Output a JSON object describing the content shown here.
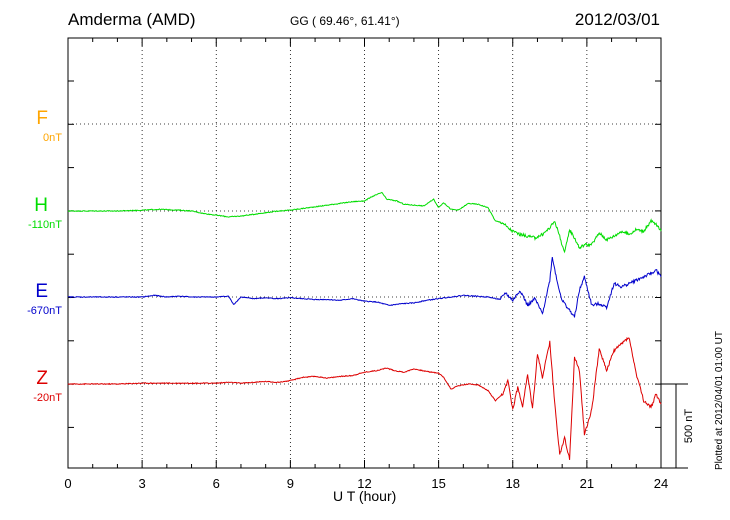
{
  "header": {
    "station": "Amderma (AMD)",
    "coords": "GG ( 69.46°,  61.41°)",
    "date": "2012/03/01"
  },
  "footer": {
    "plotted": "Plotted at 2012/04/01 01:00 UT"
  },
  "chart_data": {
    "type": "line",
    "title": "",
    "xlabel": "U T (hour)",
    "ylabel": "",
    "xlim": [
      0,
      24
    ],
    "xticks": [
      0,
      3,
      6,
      9,
      12,
      15,
      18,
      21,
      24
    ],
    "grid": true,
    "scale_bar": {
      "label": "500 nT",
      "value_nT": 500
    },
    "channels": [
      {
        "name": "F",
        "baseline": "0nT",
        "color": "#ffa500",
        "x": [],
        "y": []
      },
      {
        "name": "H",
        "baseline": "-110nT",
        "color": "#00dd00",
        "x": [
          0,
          1,
          2,
          3,
          3.7,
          4.5,
          5,
          5.5,
          6,
          6.5,
          7,
          7.5,
          8,
          8.5,
          9,
          9.5,
          10,
          10.5,
          11,
          11.5,
          12,
          12.3,
          12.7,
          12.9,
          13.3,
          13.6,
          14,
          14.4,
          14.8,
          15,
          15.2,
          15.5,
          15.8,
          16.2,
          16.6,
          17,
          17.3,
          17.6,
          17.8,
          18,
          18.3,
          18.6,
          18.9,
          19.2,
          19.5,
          19.7,
          19.9,
          20.1,
          20.3,
          20.5,
          20.7,
          20.9,
          21.2,
          21.5,
          21.8,
          22.1,
          22.4,
          22.7,
          23,
          23.3,
          23.6,
          23.8,
          24
        ],
        "y": [
          0,
          0,
          0,
          5,
          10,
          5,
          0,
          -15,
          -25,
          -35,
          -30,
          -20,
          -10,
          0,
          5,
          15,
          25,
          35,
          45,
          55,
          60,
          85,
          110,
          70,
          60,
          40,
          35,
          30,
          70,
          20,
          50,
          10,
          5,
          45,
          40,
          20,
          -60,
          -70,
          -100,
          -120,
          -140,
          -150,
          -160,
          -140,
          -100,
          -60,
          -150,
          -250,
          -110,
          -160,
          -220,
          -200,
          -200,
          -130,
          -170,
          -150,
          -120,
          -140,
          -110,
          -120,
          -60,
          -80,
          -120
        ]
      },
      {
        "name": "E",
        "baseline": "-670nT",
        "color": "#0000cc",
        "x": [
          0,
          1,
          2,
          3,
          3.5,
          4,
          4.5,
          5,
          5.5,
          6,
          6.5,
          6.7,
          7,
          7.5,
          8,
          8.5,
          9,
          9.5,
          10,
          10.5,
          11,
          11.5,
          12,
          12.5,
          13,
          13.5,
          14,
          14.5,
          15,
          15.5,
          16,
          16.5,
          17,
          17.5,
          17.7,
          18,
          18.3,
          18.6,
          18.9,
          19.2,
          19.5,
          19.6,
          19.8,
          20,
          20.2,
          20.5,
          20.7,
          20.9,
          21.2,
          21.5,
          21.8,
          22.1,
          22.4,
          22.7,
          23,
          23.3,
          23.6,
          23.8,
          24
        ],
        "y": [
          0,
          0,
          0,
          0,
          10,
          0,
          5,
          0,
          0,
          0,
          5,
          -45,
          0,
          -10,
          -5,
          -10,
          -5,
          -10,
          -15,
          -15,
          -20,
          -10,
          -25,
          -30,
          -50,
          -40,
          -35,
          -20,
          -10,
          0,
          10,
          5,
          0,
          -15,
          25,
          -20,
          40,
          -50,
          -10,
          -100,
          100,
          240,
          90,
          -20,
          -60,
          -120,
          40,
          120,
          -50,
          -40,
          -60,
          80,
          60,
          80,
          100,
          120,
          140,
          160,
          120
        ]
      },
      {
        "name": "Z",
        "baseline": "-20nT",
        "color": "#dd0000",
        "x": [
          0,
          1,
          2,
          3,
          4,
          5,
          6,
          6.5,
          7,
          7.5,
          8,
          8.5,
          9,
          9.5,
          10,
          10.5,
          11,
          11.5,
          12,
          12.5,
          12.9,
          13.2,
          13.6,
          14,
          14.5,
          15,
          15.2,
          15.5,
          15.8,
          16.2,
          16.6,
          17,
          17.3,
          17.6,
          17.8,
          18,
          18.2,
          18.4,
          18.6,
          18.8,
          19,
          19.2,
          19.5,
          19.7,
          19.9,
          20.1,
          20.3,
          20.5,
          20.7,
          20.9,
          21.2,
          21.5,
          21.8,
          22.1,
          22.4,
          22.7,
          23,
          23.3,
          23.6,
          23.8,
          24
        ],
        "y": [
          0,
          0,
          0,
          5,
          5,
          5,
          5,
          10,
          5,
          10,
          15,
          10,
          20,
          40,
          45,
          35,
          45,
          50,
          70,
          80,
          95,
          80,
          70,
          90,
          75,
          65,
          40,
          -30,
          -10,
          0,
          -5,
          -40,
          -100,
          -60,
          20,
          -150,
          -20,
          -130,
          60,
          -150,
          180,
          40,
          250,
          -120,
          -420,
          -320,
          -450,
          160,
          80,
          -300,
          -150,
          210,
          80,
          200,
          240,
          280,
          60,
          -100,
          -140,
          -60,
          -120
        ]
      }
    ]
  }
}
